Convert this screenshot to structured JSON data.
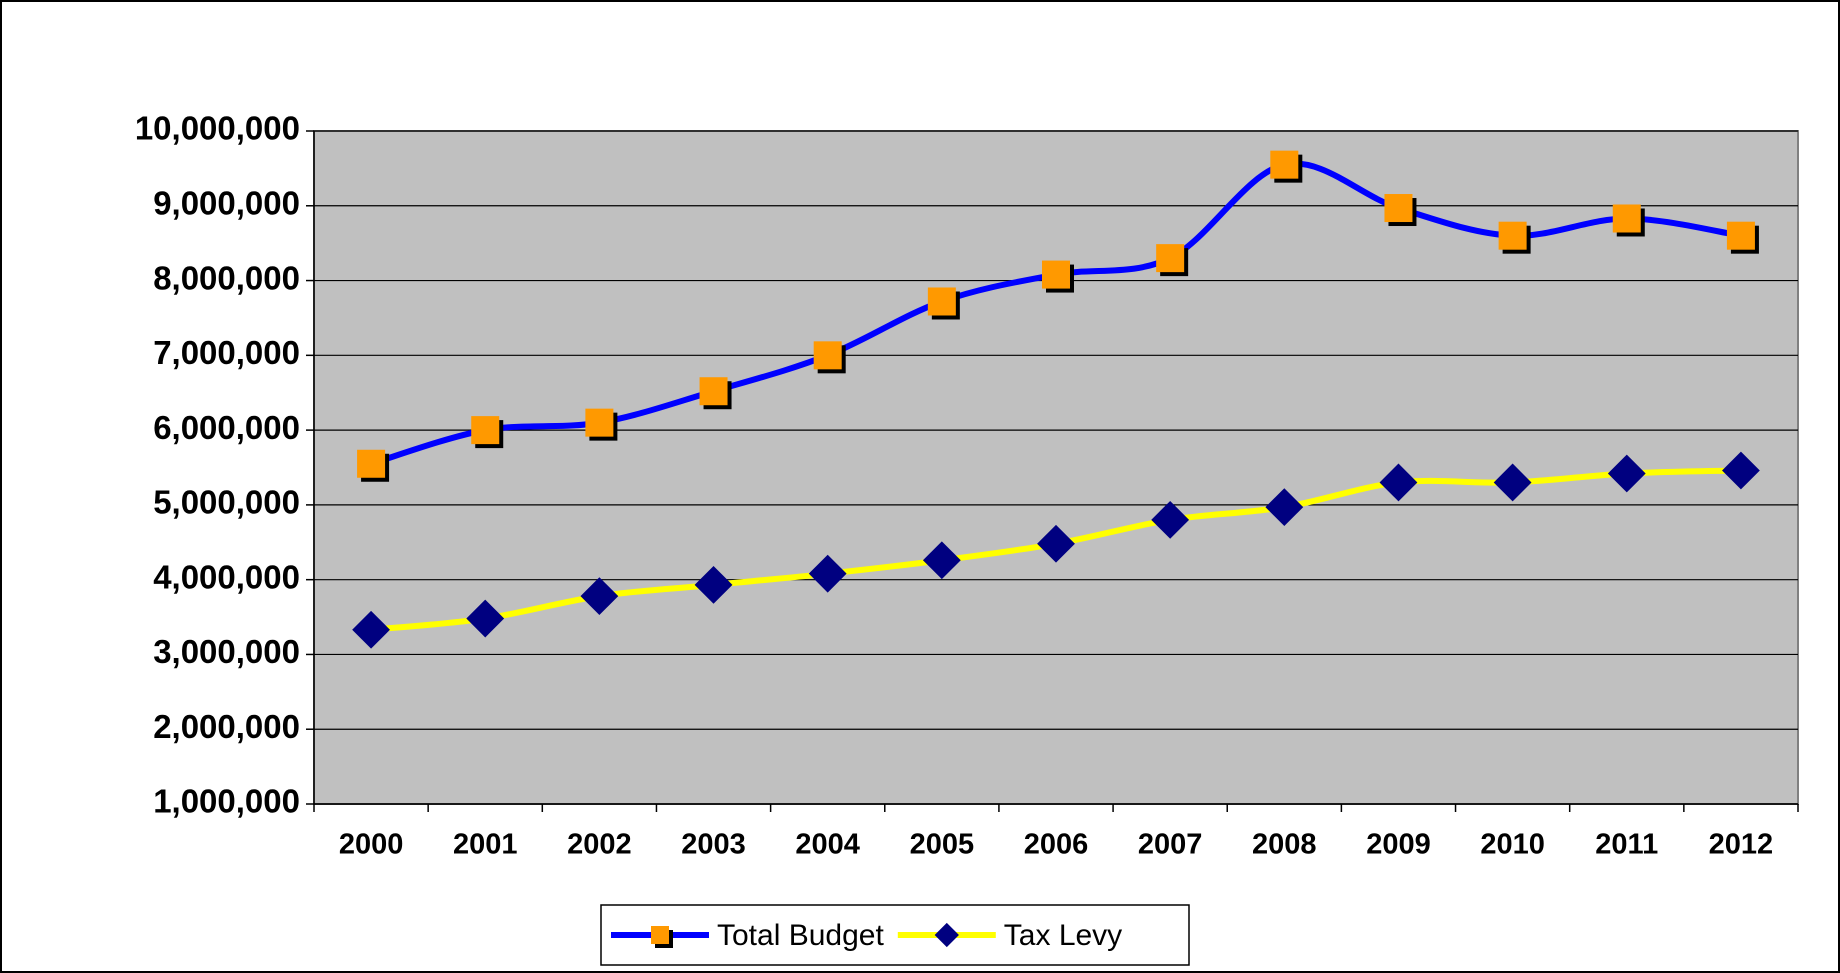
{
  "chart_data": {
    "type": "line",
    "categories": [
      "2000",
      "2001",
      "2002",
      "2003",
      "2004",
      "2005",
      "2006",
      "2007",
      "2008",
      "2009",
      "2010",
      "2011",
      "2012"
    ],
    "series": [
      {
        "name": "Total Budget",
        "color": "#0000ff",
        "marker": "square",
        "marker_color": "#ff9900",
        "values": [
          5550000,
          6000000,
          6100000,
          6520000,
          7000000,
          7720000,
          8080000,
          8300000,
          9550000,
          8970000,
          8600000,
          8830000,
          8600000
        ]
      },
      {
        "name": "Tax Levy",
        "color": "#ffff00",
        "marker": "diamond",
        "marker_color": "#000080",
        "values": [
          3330000,
          3480000,
          3780000,
          3930000,
          4080000,
          4260000,
          4480000,
          4800000,
          4970000,
          5300000,
          5300000,
          5420000,
          5460000
        ]
      }
    ],
    "ylim": [
      1000000,
      10000000
    ],
    "yticks": [
      {
        "value": 1000000,
        "label": "1,000,000"
      },
      {
        "value": 2000000,
        "label": "2,000,000"
      },
      {
        "value": 3000000,
        "label": "3,000,000"
      },
      {
        "value": 4000000,
        "label": "4,000,000"
      },
      {
        "value": 5000000,
        "label": "5,000,000"
      },
      {
        "value": 6000000,
        "label": "6,000,000"
      },
      {
        "value": 7000000,
        "label": "7,000,000"
      },
      {
        "value": 8000000,
        "label": "8,000,000"
      },
      {
        "value": 9000000,
        "label": "9,000,000"
      },
      {
        "value": 10000000,
        "label": "10,000,000"
      }
    ],
    "grid": true,
    "smooth": true,
    "legend": "bottom",
    "plot_background": "#c0c0c0"
  }
}
